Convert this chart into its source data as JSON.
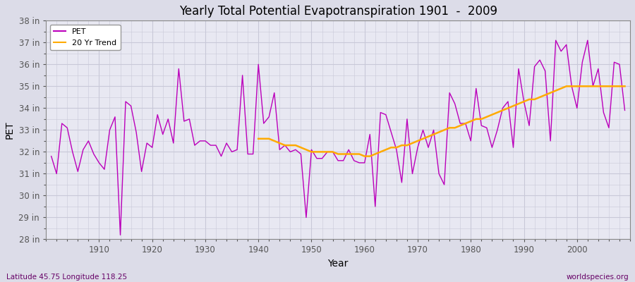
{
  "title": "Yearly Total Potential Evapotranspiration 1901  -  2009",
  "ylabel": "PET",
  "xlabel": "Year",
  "subtitle_left": "Latitude 45.75 Longitude 118.25",
  "subtitle_right": "worldspecies.org",
  "pet_color": "#bb00bb",
  "trend_color": "#ffaa00",
  "background_color": "#dcdce8",
  "plot_bg_color": "#e8e8f2",
  "grid_color": "#c8c8d8",
  "ylim": [
    28,
    38
  ],
  "yticks": [
    28,
    29,
    30,
    31,
    32,
    33,
    34,
    35,
    36,
    37,
    38
  ],
  "ytick_labels": [
    "28 in",
    "29 in",
    "30 in",
    "31 in",
    "32 in",
    "33 in",
    "34 in",
    "35 in",
    "36 in",
    "37 in",
    "38 in"
  ],
  "pet_years": [
    1901,
    1902,
    1903,
    1904,
    1905,
    1906,
    1907,
    1908,
    1909,
    1910,
    1911,
    1912,
    1913,
    1914,
    1915,
    1916,
    1917,
    1918,
    1919,
    1920,
    1921,
    1922,
    1923,
    1924,
    1925,
    1926,
    1927,
    1928,
    1929,
    1930,
    1931,
    1932,
    1933,
    1934,
    1935,
    1936,
    1937,
    1938,
    1939,
    1940,
    1941,
    1942,
    1943,
    1944,
    1945,
    1946,
    1947,
    1948,
    1949,
    1950,
    1951,
    1952,
    1953,
    1954,
    1955,
    1956,
    1957,
    1958,
    1959,
    1960,
    1961,
    1962,
    1963,
    1964,
    1965,
    1966,
    1967,
    1968,
    1969,
    1970,
    1971,
    1972,
    1973,
    1974,
    1975,
    1976,
    1977,
    1978,
    1979,
    1980,
    1981,
    1982,
    1983,
    1984,
    1985,
    1986,
    1987,
    1988,
    1989,
    1990,
    1991,
    1992,
    1993,
    1994,
    1995,
    1996,
    1997,
    1998,
    1999,
    2000,
    2001,
    2002,
    2003,
    2004,
    2005,
    2006,
    2007,
    2008,
    2009
  ],
  "pet_values": [
    31.8,
    31.0,
    33.3,
    33.1,
    32.0,
    31.1,
    32.1,
    32.5,
    31.9,
    31.5,
    31.2,
    33.0,
    33.6,
    28.2,
    34.3,
    34.1,
    32.9,
    31.1,
    32.4,
    32.2,
    33.7,
    32.8,
    33.5,
    32.4,
    35.8,
    33.4,
    33.5,
    32.3,
    32.5,
    32.5,
    32.3,
    32.3,
    31.8,
    32.4,
    32.0,
    32.1,
    35.5,
    31.9,
    31.9,
    36.0,
    33.3,
    33.6,
    34.7,
    32.1,
    32.3,
    32.0,
    32.1,
    31.9,
    29.0,
    32.1,
    31.7,
    31.7,
    32.0,
    32.0,
    31.6,
    31.6,
    32.1,
    31.6,
    31.5,
    31.5,
    32.8,
    29.5,
    33.8,
    33.7,
    32.9,
    32.1,
    30.6,
    33.5,
    31.0,
    32.2,
    33.0,
    32.2,
    33.0,
    31.0,
    30.5,
    34.7,
    34.2,
    33.3,
    33.3,
    32.5,
    34.9,
    33.2,
    33.1,
    32.2,
    33.0,
    34.0,
    34.3,
    32.2,
    35.8,
    34.3,
    33.2,
    35.9,
    36.2,
    35.7,
    32.5,
    37.1,
    36.6,
    36.9,
    35.0,
    34.0,
    36.1,
    37.1,
    35.0,
    35.8,
    33.8,
    33.1,
    36.1,
    36.0,
    33.9
  ],
  "trend_years": [
    1940,
    1941,
    1942,
    1943,
    1944,
    1945,
    1946,
    1947,
    1948,
    1949,
    1950,
    1951,
    1952,
    1953,
    1954,
    1955,
    1956,
    1957,
    1958,
    1959,
    1960,
    1961,
    1962,
    1963,
    1964,
    1965,
    1966,
    1967,
    1968,
    1969,
    1970,
    1971,
    1972,
    1973,
    1974,
    1975,
    1976,
    1977,
    1978,
    1979,
    1980,
    1981,
    1982,
    1983,
    1984,
    1985,
    1986,
    1987,
    1988,
    1989,
    1990,
    1991,
    1992,
    1993,
    1994,
    1995,
    1996,
    1997,
    1998,
    1999,
    2000,
    2001,
    2002,
    2003,
    2004,
    2005,
    2006,
    2007,
    2008,
    2009
  ],
  "trend_values": [
    32.6,
    32.6,
    32.6,
    32.5,
    32.4,
    32.3,
    32.3,
    32.3,
    32.2,
    32.1,
    32.0,
    32.0,
    32.0,
    32.0,
    32.0,
    31.9,
    31.9,
    31.9,
    31.9,
    31.9,
    31.8,
    31.8,
    31.9,
    32.0,
    32.1,
    32.2,
    32.2,
    32.3,
    32.3,
    32.4,
    32.5,
    32.6,
    32.7,
    32.8,
    32.9,
    33.0,
    33.1,
    33.1,
    33.2,
    33.3,
    33.4,
    33.5,
    33.5,
    33.6,
    33.7,
    33.8,
    33.9,
    34.0,
    34.1,
    34.2,
    34.3,
    34.4,
    34.4,
    34.5,
    34.6,
    34.7,
    34.8,
    34.9,
    35.0,
    35.0,
    35.0,
    35.0,
    35.0,
    35.0,
    35.0,
    35.0,
    35.0,
    35.0,
    35.0,
    35.0
  ]
}
